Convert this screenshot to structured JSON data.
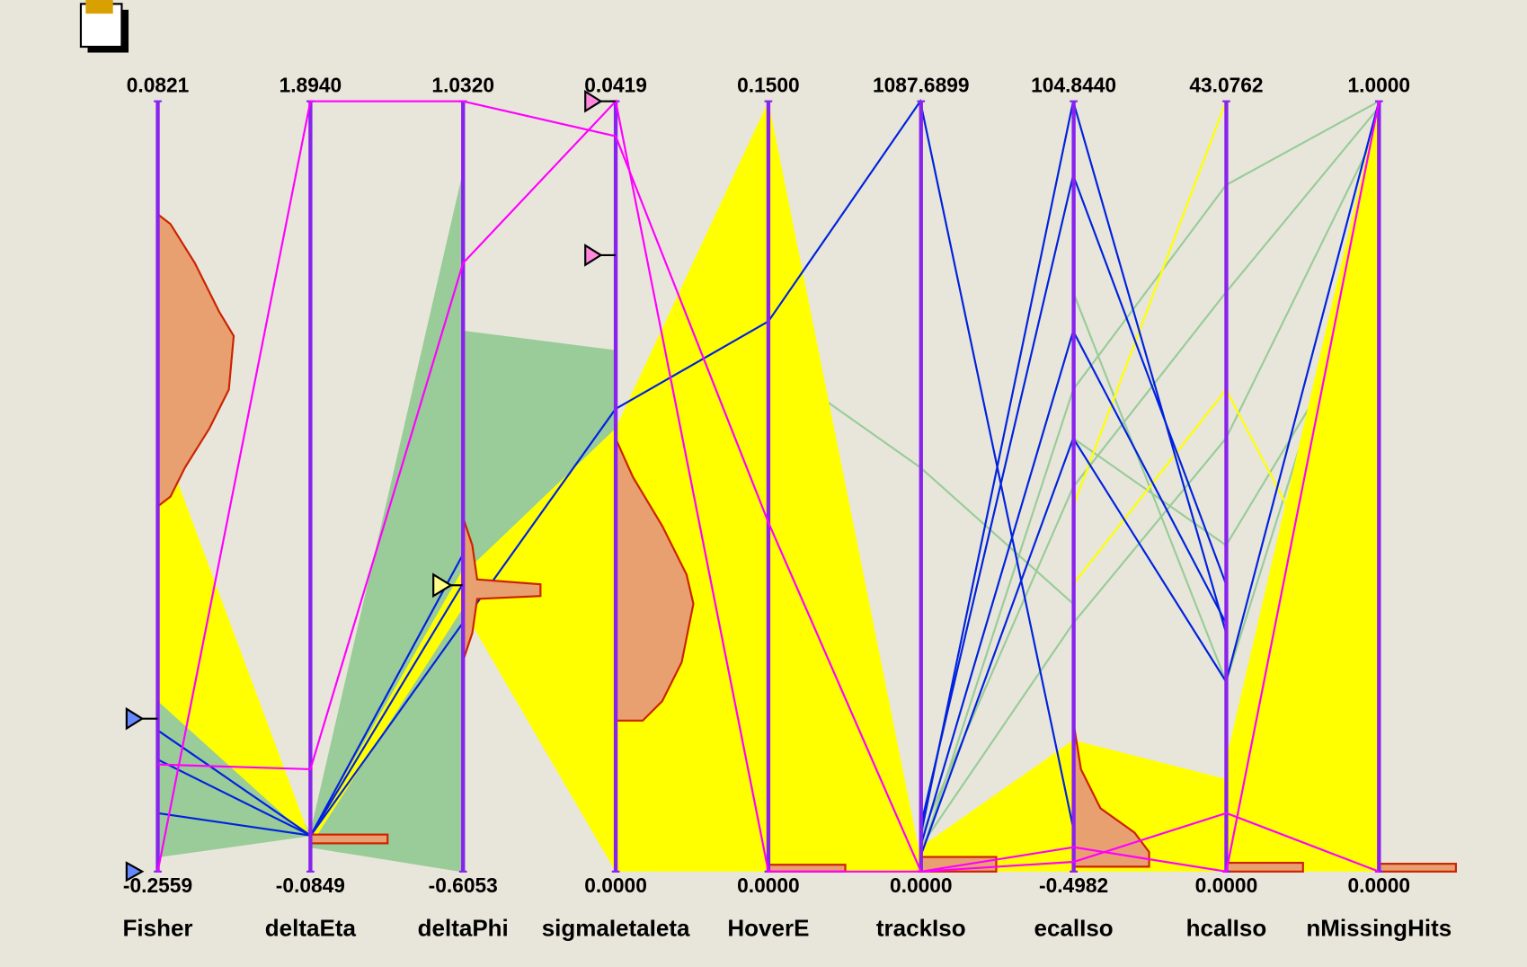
{
  "chart_data": {
    "type": "parallel",
    "axes": [
      {
        "label": "Fisher",
        "ylim": [
          -0.2559,
          0.0821
        ],
        "yticks": [
          -0.2559,
          0.0821
        ]
      },
      {
        "label": "deltaEta",
        "ylim": [
          -0.0849,
          1.894
        ],
        "yticks": [
          -0.0849,
          {
            "value": 1.894,
            "label": "1.8940"
          }
        ]
      },
      {
        "label": "deltaPhi",
        "ylim": [
          -0.6053,
          1.032
        ],
        "yticks": [
          -0.6053,
          {
            "value": 1.032,
            "label": "1.0320"
          }
        ]
      },
      {
        "label": "sigmaIetaIeta",
        "ylim": [
          0,
          0.0419
        ],
        "yticks": [
          {
            "value": 0,
            "label": "0.0000"
          },
          0.0419
        ]
      },
      {
        "label": "HoverE",
        "ylim": [
          0,
          0.15
        ],
        "yticks": [
          {
            "value": 0,
            "label": "0.0000"
          },
          {
            "value": 0.15,
            "label": "0.1500"
          }
        ]
      },
      {
        "label": "trackIso",
        "ylim": [
          0,
          1087.6899
        ],
        "yticks": [
          {
            "value": 0,
            "label": "0.0000"
          },
          1087.6899
        ]
      },
      {
        "label": "ecalIso",
        "ylim": [
          -0.4982,
          104.844
        ],
        "yticks": [
          -0.4982,
          {
            "value": 104.844,
            "label": "104.8440"
          }
        ]
      },
      {
        "label": "hcalIso",
        "ylim": [
          0,
          43.0762
        ],
        "yticks": [
          {
            "value": 0,
            "label": "0.0000"
          },
          43.0762
        ]
      },
      {
        "label": "nMissingHits",
        "ylim": [
          0,
          1
        ],
        "yticks": [
          {
            "value": 0,
            "label": "0.0000"
          },
          {
            "value": 1,
            "label": "1.0000"
          }
        ]
      }
    ],
    "series": [
      {
        "color": "#ff00ff",
        "values": [
          -0.2559,
          1.894,
          1.032,
          0.04,
          0.068,
          0,
          0.83,
          3.27,
          0
        ]
      },
      {
        "color": "#ff00ff",
        "values": [
          -0.2089,
          0.178,
          0.688,
          0.0419,
          0,
          0,
          2.83,
          0,
          1
        ]
      }
    ]
  }
}
